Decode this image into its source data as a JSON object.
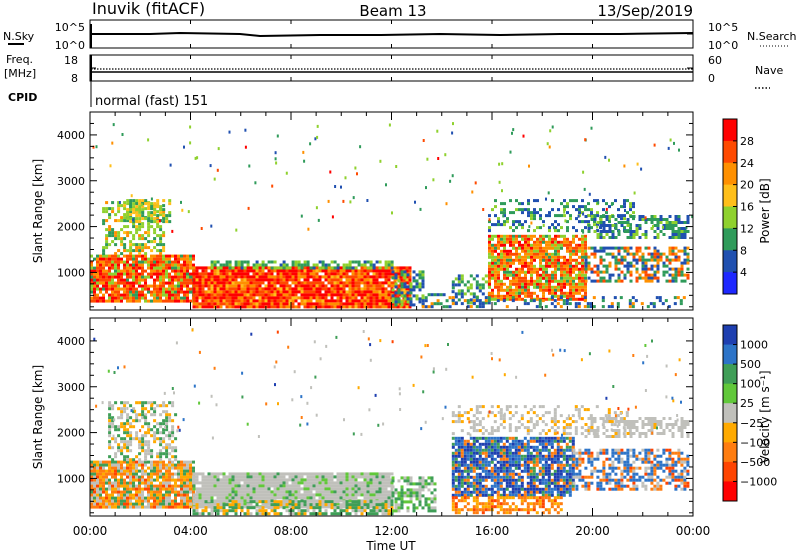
{
  "header": {
    "station": "Inuvik (fitACF)",
    "beam": "Beam 13",
    "date": "13/Sep/2019"
  },
  "top_panels": {
    "nsky_label": "N.Sky",
    "nsearch_label": "N.Search",
    "freq_label_1": "Freq.",
    "freq_label_2": "[MHz]",
    "nave_label": "Nave",
    "cpid_label": "CPID",
    "cpid_value": "normal (fast) 151",
    "noise_left_ticks": [
      "10^5",
      "10^0"
    ],
    "noise_right_ticks": [
      "10^5",
      "10^0"
    ],
    "freq_left_ticks": [
      "18",
      "8"
    ],
    "freq_right_ticks": [
      "60",
      "0"
    ]
  },
  "chart_data": [
    {
      "type": "heatmap",
      "panel": "power",
      "ylabel": "Slant Range [km]",
      "y_ticks": [
        1000,
        2000,
        3000,
        4000
      ],
      "ylim": [
        180,
        4500
      ],
      "colorbar_label": "Power [dB]",
      "colorbar_ticks": [
        "28",
        "24",
        "20",
        "16",
        "12",
        "8",
        "4"
      ],
      "colorbar_colors": [
        "#ff0000",
        "#ff4a00",
        "#ff9000",
        "#ffbf1a",
        "#8fd12e",
        "#2f9b5a",
        "#2050b0",
        "#1e28ff"
      ]
    },
    {
      "type": "heatmap",
      "panel": "velocity",
      "ylabel": "Slant Range [km]",
      "y_ticks": [
        1000,
        2000,
        3000,
        4000
      ],
      "ylim": [
        180,
        4500
      ],
      "colorbar_label": "Velocity [m s⁻¹]",
      "colorbar_ticks": [
        "1000",
        "500",
        "100",
        "25",
        "−25",
        "−100",
        "−500",
        "−1000"
      ],
      "colorbar_colors": [
        "#1e3fb0",
        "#2d74c8",
        "#3f9e57",
        "#61c83a",
        "#c0c0bb",
        "#ffaa00",
        "#ff7d10",
        "#ff4400",
        "#ff0000"
      ]
    }
  ],
  "x_axis": {
    "label": "Time UT",
    "ticks": [
      "00:00",
      "04:00",
      "08:00",
      "12:00",
      "16:00",
      "20:00",
      "00:00"
    ]
  }
}
